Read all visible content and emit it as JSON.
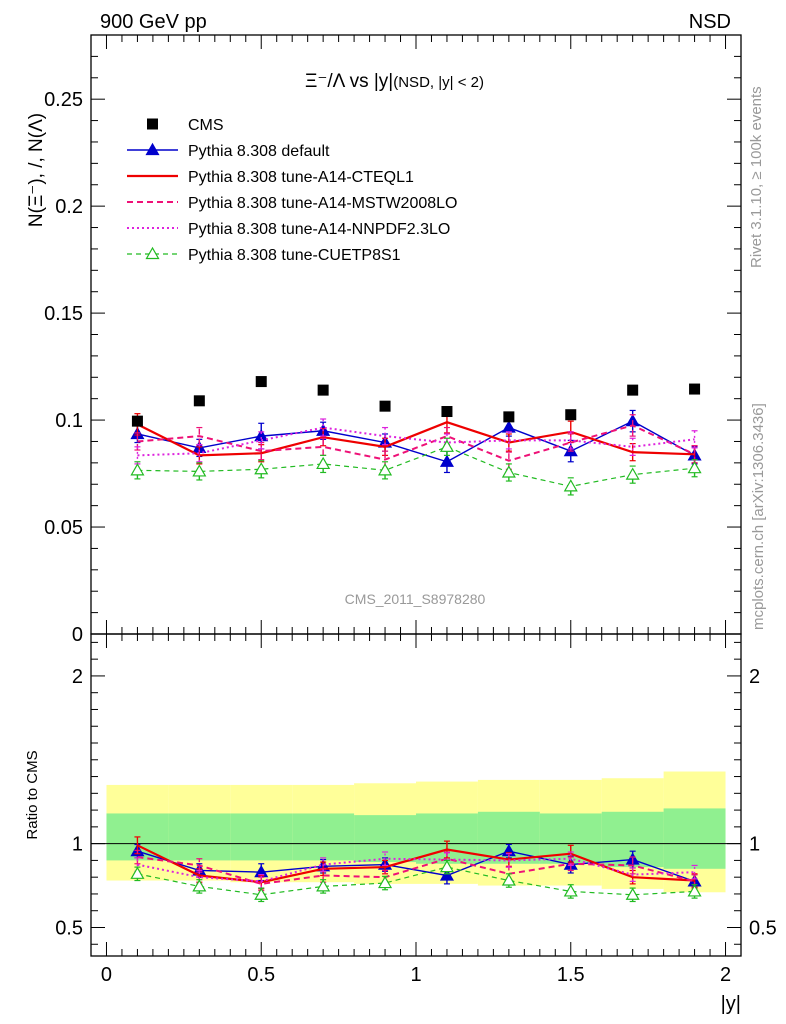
{
  "header": {
    "left": "900 GeV pp",
    "right": "NSD"
  },
  "side_labels": {
    "rivet": "Rivet 3.1.10, ≥ 100k events",
    "mcplots": "mcplots.cern.ch [arXiv:1306.3436]"
  },
  "watermark": "CMS_2011_S8978280",
  "chart_data": [
    {
      "type": "line",
      "title_main": "Ξ⁻/Λ vs |y|",
      "title_sub": "(NSD, |y| < 2)",
      "ylabel": "N(Ξ⁻), /, N(Λ)",
      "xlim": [
        -0.05,
        2.05
      ],
      "ylim": [
        0,
        0.28
      ],
      "xticks": [
        0,
        0.5,
        1,
        1.5,
        2
      ],
      "xtick_labels": [
        "0",
        "0.5",
        "1",
        "1.5",
        "2"
      ],
      "yticks": [
        0,
        0.05,
        0.1,
        0.15,
        0.2,
        0.25
      ],
      "ytick_labels": [
        "0",
        "0.05",
        "0.1",
        "0.15",
        "0.2",
        "0.25"
      ],
      "legend_position": "top-left",
      "x": [
        0.1,
        0.3,
        0.5,
        0.7,
        0.9,
        1.1,
        1.3,
        1.5,
        1.7,
        1.9
      ],
      "series": [
        {
          "name": "CMS",
          "color": "#000000",
          "style": "marker-square",
          "values": [
            0.0995,
            0.109,
            0.118,
            0.114,
            0.1065,
            0.104,
            0.1015,
            0.1025,
            0.114,
            0.1145
          ]
        },
        {
          "name": "Pythia 8.308 default",
          "color": "#0000cc",
          "style": "solid-triangle",
          "values": [
            0.0935,
            0.087,
            0.0925,
            0.095,
            0.0895,
            0.0805,
            0.0965,
            0.0855,
            0.0995,
            0.0835
          ],
          "errors": [
            0.004,
            0.004,
            0.006,
            0.004,
            0.004,
            0.005,
            0.004,
            0.005,
            0.005,
            0.004
          ]
        },
        {
          "name": "Pythia 8.308 tune-A14-CTEQL1",
          "color": "#ee0000",
          "style": "solid-thick",
          "values": [
            0.098,
            0.0835,
            0.0845,
            0.092,
            0.0875,
            0.099,
            0.0895,
            0.0945,
            0.085,
            0.084
          ],
          "errors": [
            0.005,
            0.004,
            0.004,
            0.004,
            0.004,
            0.005,
            0.004,
            0.005,
            0.004,
            0.004
          ]
        },
        {
          "name": "Pythia 8.308 tune-A14-MSTW2008LO",
          "color": "#ee1177",
          "style": "dashed",
          "values": [
            0.09,
            0.0925,
            0.0855,
            0.0875,
            0.0815,
            0.0925,
            0.081,
            0.0895,
            0.0975,
            0.084
          ],
          "errors": [
            0.004,
            0.004,
            0.004,
            0.004,
            0.004,
            0.004,
            0.004,
            0.004,
            0.005,
            0.004
          ]
        },
        {
          "name": "Pythia 8.308 tune-A14-NNPDF2.3LO",
          "color": "#dd22dd",
          "style": "dotted",
          "values": [
            0.0835,
            0.0845,
            0.0905,
            0.0965,
            0.0925,
            0.0895,
            0.0905,
            0.0905,
            0.0875,
            0.091
          ],
          "errors": [
            0.004,
            0.004,
            0.004,
            0.004,
            0.004,
            0.004,
            0.004,
            0.004,
            0.004,
            0.004
          ]
        },
        {
          "name": "Pythia 8.308 tune-CUETP8S1",
          "color": "#22bb22",
          "style": "dashed-open-triangle",
          "values": [
            0.0765,
            0.076,
            0.077,
            0.0795,
            0.0765,
            0.0875,
            0.0755,
            0.069,
            0.0745,
            0.0775
          ],
          "errors": [
            0.004,
            0.004,
            0.004,
            0.004,
            0.004,
            0.004,
            0.004,
            0.004,
            0.004,
            0.004
          ]
        }
      ]
    },
    {
      "type": "line",
      "ylabel": "Ratio to CMS",
      "xlabel": "|y|",
      "xlim": [
        -0.05,
        2.05
      ],
      "ylim": [
        0.33,
        2.25
      ],
      "yticks": [
        0.5,
        1,
        2
      ],
      "ytick_labels": [
        "0.5",
        "1",
        "2"
      ],
      "xticks": [
        0,
        0.5,
        1,
        1.5,
        2
      ],
      "xtick_labels": [
        "0",
        "0.5",
        "1",
        "1.5",
        "2"
      ],
      "bands": {
        "bins": [
          [
            0,
            0.2
          ],
          [
            0.2,
            0.4
          ],
          [
            0.4,
            0.6
          ],
          [
            0.6,
            0.8
          ],
          [
            0.8,
            1.0
          ],
          [
            1.0,
            1.2
          ],
          [
            1.2,
            1.4
          ],
          [
            1.4,
            1.6
          ],
          [
            1.6,
            1.8
          ],
          [
            1.8,
            2.0
          ]
        ],
        "stat_color": "#90f090",
        "syst_color": "#ffff99",
        "inner": [
          [
            0.9,
            1.18
          ],
          [
            0.9,
            1.18
          ],
          [
            0.9,
            1.18
          ],
          [
            0.9,
            1.18
          ],
          [
            0.89,
            1.17
          ],
          [
            0.88,
            1.18
          ],
          [
            0.88,
            1.19
          ],
          [
            0.88,
            1.18
          ],
          [
            0.86,
            1.19
          ],
          [
            0.85,
            1.21
          ]
        ],
        "outer": [
          [
            0.78,
            1.35
          ],
          [
            0.78,
            1.35
          ],
          [
            0.77,
            1.35
          ],
          [
            0.77,
            1.35
          ],
          [
            0.76,
            1.36
          ],
          [
            0.76,
            1.37
          ],
          [
            0.75,
            1.38
          ],
          [
            0.75,
            1.38
          ],
          [
            0.73,
            1.39
          ],
          [
            0.71,
            1.43
          ]
        ]
      },
      "series": [
        {
          "name": "Pythia 8.308 default",
          "color": "#0000cc",
          "values": [
            0.955,
            0.84,
            0.83,
            0.865,
            0.875,
            0.81,
            0.955,
            0.875,
            0.905,
            0.775
          ],
          "errors": [
            0.04,
            0.04,
            0.05,
            0.04,
            0.04,
            0.05,
            0.04,
            0.05,
            0.05,
            0.04
          ]
        },
        {
          "name": "Pythia 8.308 tune-A14-CTEQL1",
          "color": "#ee0000",
          "values": [
            0.99,
            0.81,
            0.77,
            0.85,
            0.86,
            0.965,
            0.905,
            0.94,
            0.8,
            0.78
          ],
          "errors": [
            0.05,
            0.04,
            0.04,
            0.04,
            0.04,
            0.05,
            0.04,
            0.05,
            0.04,
            0.04
          ]
        },
        {
          "name": "Pythia 8.308 tune-A14-MSTW2008LO",
          "color": "#ee1177",
          "values": [
            0.92,
            0.87,
            0.76,
            0.81,
            0.8,
            0.91,
            0.82,
            0.88,
            0.87,
            0.775
          ],
          "errors": [
            0.04,
            0.04,
            0.04,
            0.04,
            0.04,
            0.04,
            0.04,
            0.04,
            0.05,
            0.04
          ]
        },
        {
          "name": "Pythia 8.308 tune-A14-NNPDF2.3LO",
          "color": "#dd22dd",
          "values": [
            0.875,
            0.8,
            0.775,
            0.875,
            0.91,
            0.905,
            0.9,
            0.91,
            0.815,
            0.83
          ],
          "errors": [
            0.04,
            0.04,
            0.04,
            0.04,
            0.04,
            0.04,
            0.04,
            0.04,
            0.04,
            0.04
          ]
        },
        {
          "name": "Pythia 8.308 tune-CUETP8S1",
          "color": "#22bb22",
          "values": [
            0.82,
            0.745,
            0.695,
            0.745,
            0.765,
            0.86,
            0.78,
            0.715,
            0.695,
            0.715
          ],
          "errors": [
            0.04,
            0.04,
            0.04,
            0.04,
            0.04,
            0.04,
            0.04,
            0.04,
            0.04,
            0.04
          ]
        }
      ]
    }
  ]
}
